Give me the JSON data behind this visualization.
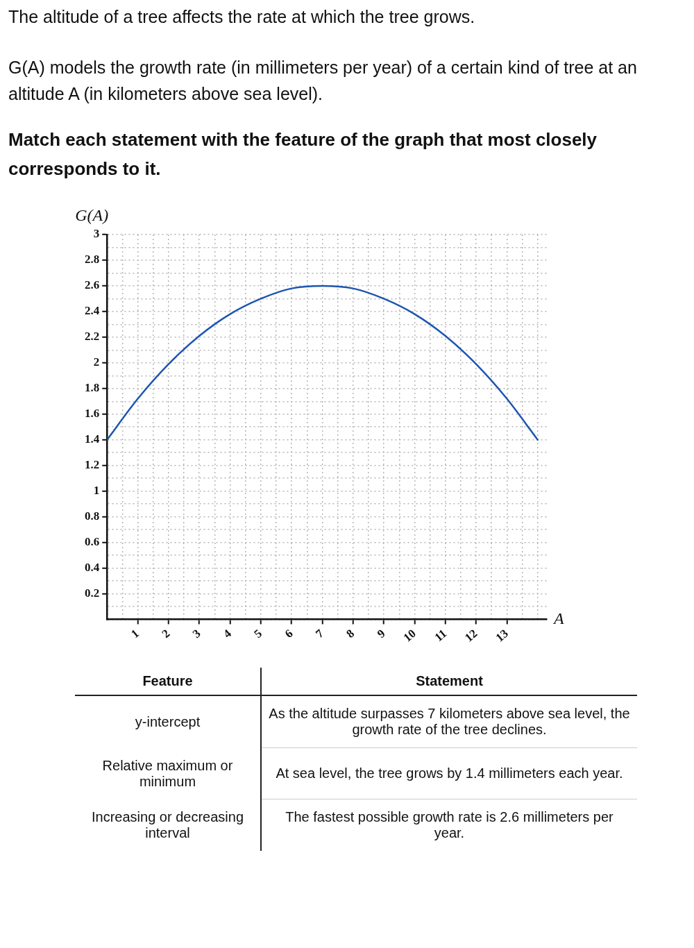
{
  "chart_data": {
    "type": "line",
    "title": "The altitude of a tree affects the rate at which the tree grows.",
    "subtitle": "G(A) models the growth rate (in millimeters per year) of a certain kind of tree at an altitude A (in kilometers above sea level).",
    "xlabel": "A",
    "ylabel": "G(A)",
    "x": [
      0,
      1,
      2,
      3,
      4,
      5,
      6,
      7,
      8,
      9,
      10,
      11,
      12,
      13,
      14
    ],
    "values": [
      1.4,
      1.72,
      1.99,
      2.21,
      2.38,
      2.5,
      2.58,
      2.6,
      2.58,
      2.5,
      2.38,
      2.21,
      1.99,
      1.72,
      1.4
    ],
    "color": "#1d56b0",
    "marker": "none",
    "line_style": "solid",
    "grid": true,
    "xlim": [
      0,
      14.3
    ],
    "ylim": [
      0,
      3
    ],
    "xticks": [
      {
        "value": 0,
        "label": null
      },
      {
        "value": 0.5,
        "label": null
      },
      1,
      {
        "value": 1.5,
        "label": null
      },
      2,
      {
        "value": 2.5,
        "label": null
      },
      3,
      {
        "value": 3.5,
        "label": null
      },
      4,
      {
        "value": 4.5,
        "label": null
      },
      5,
      {
        "value": 5.5,
        "label": null
      },
      6,
      {
        "value": 6.5,
        "label": null
      },
      7,
      {
        "value": 7.5,
        "label": null
      },
      8,
      {
        "value": 8.5,
        "label": null
      },
      9,
      {
        "value": 9.5,
        "label": null
      },
      10,
      {
        "value": 10.5,
        "label": null
      },
      11,
      {
        "value": 11.5,
        "label": null
      },
      12,
      {
        "value": 12.5,
        "label": null
      },
      13,
      {
        "value": 13.5,
        "label": null
      },
      {
        "value": 14,
        "label": null
      }
    ],
    "yticks": [
      {
        "value": 0,
        "label": null
      },
      {
        "value": 0.1,
        "label": null
      },
      0.2,
      {
        "value": 0.3,
        "label": null
      },
      0.4,
      {
        "value": 0.5,
        "label": null
      },
      0.6,
      {
        "value": 0.7,
        "label": null
      },
      0.8,
      {
        "value": 0.9,
        "label": null
      },
      1,
      {
        "value": 1.1,
        "label": null
      },
      1.2,
      {
        "value": 1.3,
        "label": null
      },
      1.4,
      {
        "value": 1.5,
        "label": null
      },
      1.6,
      {
        "value": 1.7,
        "label": null
      },
      1.8,
      {
        "value": 1.9,
        "label": null
      },
      2,
      {
        "value": 2.1,
        "label": null
      },
      2.2,
      {
        "value": 2.3,
        "label": null
      },
      2.4,
      {
        "value": 2.5,
        "label": null
      },
      2.6,
      {
        "value": 2.7,
        "label": null
      },
      2.8,
      {
        "value": 2.9,
        "label": null
      },
      3
    ],
    "annotations": [
      "Match each statement with the feature of the graph that most closely corresponds to it.",
      "Feature",
      "Statement",
      "y-intercept",
      "As the altitude surpasses 7 kilometers above sea level, the growth rate of the tree declines.",
      "Relative maximum or minimum",
      "At sea level, the tree grows by 1.4 millimeters each year.",
      "Increasing or decreasing interval",
      "The fastest possible growth rate is 2.6 millimeters per year."
    ]
  }
}
